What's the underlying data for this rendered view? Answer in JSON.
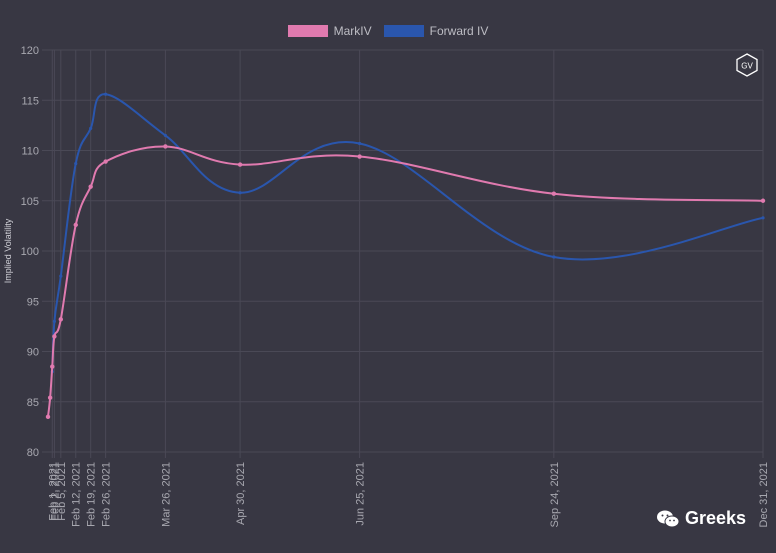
{
  "legend": [
    {
      "label": "MarkIV",
      "color": "#e07aaf"
    },
    {
      "label": "Forward IV",
      "color": "#2a56ad"
    }
  ],
  "badge": {
    "text": "GV"
  },
  "watermark": {
    "text": "Greeks",
    "icon": "wechat-icon"
  },
  "chart_data": {
    "type": "line",
    "ylabel": "Implied Volatility",
    "ylim": [
      80,
      120
    ],
    "yticks": [
      80,
      85,
      90,
      95,
      100,
      105,
      110,
      115,
      120
    ],
    "grid": true,
    "legend_position": "top-center",
    "x_dates": [
      "2021-01-30",
      "2021-01-31",
      "2021-02-01",
      "2021-02-02",
      "2021-02-05",
      "2021-02-12",
      "2021-02-19",
      "2021-02-26",
      "2021-03-26",
      "2021-04-30",
      "2021-06-25",
      "2021-09-24",
      "2021-12-31"
    ],
    "xtick_labels": [
      "Feb 1, 2021",
      "Feb 2, 2021",
      "Feb 5, 2021",
      "Feb 12, 2021",
      "Feb 19, 2021",
      "Feb 26, 2021",
      "Mar 26, 2021",
      "Apr 30, 2021",
      "Jun 25, 2021",
      "Sep 24, 2021",
      "Dec 31, 2021"
    ],
    "xtick_dates": [
      "2021-02-01",
      "2021-02-02",
      "2021-02-05",
      "2021-02-12",
      "2021-02-19",
      "2021-02-26",
      "2021-03-26",
      "2021-04-30",
      "2021-06-25",
      "2021-09-24",
      "2021-12-31"
    ],
    "series": [
      {
        "name": "MarkIV",
        "color": "#e07aaf",
        "values": [
          83.5,
          85.4,
          88.5,
          91.5,
          93.2,
          102.6,
          106.4,
          108.9,
          110.4,
          108.6,
          109.4,
          105.7,
          105.0
        ]
      },
      {
        "name": "Forward IV",
        "color": "#2a56ad",
        "values": [
          null,
          null,
          88.0,
          93.0,
          97.5,
          108.7,
          112.2,
          115.6,
          111.5,
          105.8,
          110.7,
          99.4,
          103.3
        ]
      }
    ]
  }
}
